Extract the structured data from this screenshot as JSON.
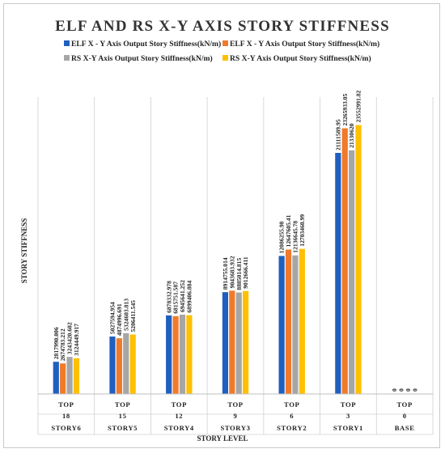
{
  "chart_data": {
    "type": "bar",
    "title": "ELF AND RS X-Y AXIS STORY STIFFNESS",
    "ylabel": "STORY STIFFNESS",
    "xlabel": "STORY LEVEL",
    "ylim": [
      0,
      26000000
    ],
    "legend_position": "top",
    "grid": false,
    "categories": [
      {
        "level": "TOP",
        "number": "18",
        "story": "STORY6"
      },
      {
        "level": "TOP",
        "number": "15",
        "story": "STORY5"
      },
      {
        "level": "TOP",
        "number": "12",
        "story": "STORY4"
      },
      {
        "level": "TOP",
        "number": "9",
        "story": "STORY3"
      },
      {
        "level": "TOP",
        "number": "6",
        "story": "STORY2"
      },
      {
        "level": "TOP",
        "number": "3",
        "story": "STORY1"
      },
      {
        "level": "TOP",
        "number": "0",
        "story": "BASE"
      }
    ],
    "series": [
      {
        "name": "ELF X - Y Axis Output Story Stiffness(kN/m)",
        "color": "#1f5fbf",
        "values": [
          2817990.006,
          5027594.954,
          6878332.978,
          8914755.014,
          12086255.98,
          21111589.95,
          0
        ],
        "labels": [
          "2817990.006",
          "5027594.954",
          "6878332.978",
          "8914755.014",
          "12086255.98",
          "21111589.95",
          "0"
        ]
      },
      {
        "name": "ELF X - Y Axis Output Story Stiffness(kN/m)",
        "color": "#f07a2a",
        "values": [
          2674783.212,
          4874996.691,
          6815751.587,
          9043683.932,
          12647605.41,
          23265933.05,
          0
        ],
        "labels": [
          "2674783.212",
          "4874996.691",
          "6815751.587",
          "9043683.932",
          "12647605.41",
          "23265933.05",
          "0"
        ]
      },
      {
        "name": "RS X-Y Axis Output Story Stiffness(kN/m)",
        "color": "#a6a6a6",
        "values": [
          3243420.602,
          5324603.813,
          6945641.252,
          8885014.815,
          12136645.78,
          21330620,
          0
        ],
        "labels": [
          "3243420.602",
          "5324603.813",
          "6945641.252",
          "8885014.815",
          "12136645.78",
          "21330620",
          "0"
        ]
      },
      {
        "name": "RS X-Y Axis Output Story Stiffness(kN/m)",
        "color": "#ffc000",
        "values": [
          3124449.917,
          5206411.545,
          6899406.884,
          9012666.411,
          12703460.99,
          23552991.82,
          0
        ],
        "labels": [
          "3124449.917",
          "5206411.545",
          "6899406.884",
          "9012666.411",
          "12703460.99",
          "23552991.82",
          "0"
        ]
      }
    ]
  }
}
